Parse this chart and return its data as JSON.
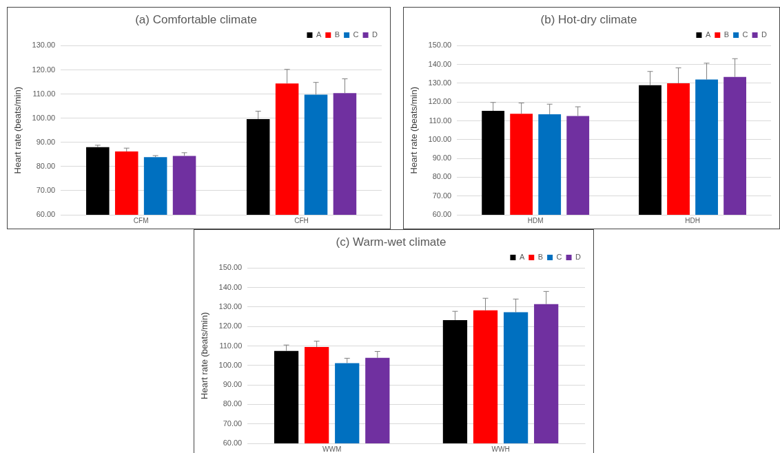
{
  "chart_data": [
    {
      "type": "bar",
      "title": "(a) Comfortable climate",
      "ylabel": "Heart rate (beats/min)",
      "categories": [
        "CFM",
        "CFH"
      ],
      "series": [
        {
          "name": "A",
          "color": "#000000",
          "values": [
            88.0,
            99.6
          ],
          "errors": [
            [
              88.0,
              88.8
            ],
            [
              99.6,
              102.9
            ]
          ]
        },
        {
          "name": "B",
          "color": "#ff0000",
          "values": [
            86.2,
            114.4
          ],
          "errors": [
            [
              86.2,
              87.6
            ],
            [
              114.4,
              120.2
            ]
          ]
        },
        {
          "name": "C",
          "color": "#0070c0",
          "values": [
            83.9,
            109.7
          ],
          "errors": [
            [
              83.9,
              84.5
            ],
            [
              109.7,
              114.8
            ]
          ]
        },
        {
          "name": "D",
          "color": "#7030a0",
          "values": [
            84.4,
            110.4
          ],
          "errors": [
            [
              84.4,
              85.7
            ],
            [
              110.4,
              116.3
            ]
          ]
        }
      ],
      "ylim": [
        60,
        130
      ],
      "yticks": [
        {
          "value": 60,
          "label": "60.00"
        },
        {
          "value": 70,
          "label": "70.00"
        },
        {
          "value": 80,
          "label": "80.00"
        },
        {
          "value": 90,
          "label": "90.00"
        },
        {
          "value": 100,
          "label": "100.00"
        },
        {
          "value": 110,
          "label": "110.00"
        },
        {
          "value": 120,
          "label": "120.00"
        },
        {
          "value": 130,
          "label": "130.00"
        }
      ],
      "grid": "y",
      "legend": "top right"
    },
    {
      "type": "bar",
      "title": "(b) Hot-dry climate",
      "ylabel": "Heart rate (beats/min)",
      "categories": [
        "HDM",
        "HDH"
      ],
      "series": [
        {
          "name": "A",
          "color": "#000000",
          "values": [
            115.3,
            129.0
          ],
          "errors": [
            [
              115.3,
              119.8
            ],
            [
              129.0,
              136.3
            ]
          ]
        },
        {
          "name": "B",
          "color": "#ff0000",
          "values": [
            113.8,
            130.0
          ],
          "errors": [
            [
              113.8,
              119.5
            ],
            [
              130.0,
              138.2
            ]
          ]
        },
        {
          "name": "C",
          "color": "#0070c0",
          "values": [
            113.5,
            132.0
          ],
          "errors": [
            [
              113.5,
              118.9
            ],
            [
              132.0,
              140.7
            ]
          ]
        },
        {
          "name": "D",
          "color": "#7030a0",
          "values": [
            112.6,
            133.4
          ],
          "errors": [
            [
              112.6,
              117.5
            ],
            [
              133.4,
              143.1
            ]
          ]
        }
      ],
      "ylim": [
        60,
        150
      ],
      "yticks": [
        {
          "value": 60,
          "label": "60.00"
        },
        {
          "value": 70,
          "label": "70.00"
        },
        {
          "value": 80,
          "label": "80.00"
        },
        {
          "value": 90,
          "label": "90.00"
        },
        {
          "value": 100,
          "label": "100.00"
        },
        {
          "value": 110,
          "label": "110.00"
        },
        {
          "value": 120,
          "label": "120.00"
        },
        {
          "value": 130,
          "label": "130.00"
        },
        {
          "value": 140,
          "label": "140.00"
        },
        {
          "value": 150,
          "label": "150.00"
        }
      ],
      "grid": "y",
      "legend": "top right"
    },
    {
      "type": "bar",
      "title": "(c) Warm-wet climate",
      "ylabel": "Heart rate (beats/min)",
      "categories": [
        "WWM",
        "WWH"
      ],
      "series": [
        {
          "name": "A",
          "color": "#000000",
          "values": [
            107.5,
            123.3
          ],
          "errors": [
            [
              107.5,
              110.5
            ],
            [
              123.3,
              127.8
            ]
          ]
        },
        {
          "name": "B",
          "color": "#ff0000",
          "values": [
            109.5,
            128.3
          ],
          "errors": [
            [
              109.5,
              112.5
            ],
            [
              128.3,
              134.5
            ]
          ]
        },
        {
          "name": "C",
          "color": "#0070c0",
          "values": [
            101.2,
            127.3
          ],
          "errors": [
            [
              101.2,
              103.7
            ],
            [
              127.3,
              134.1
            ]
          ]
        },
        {
          "name": "D",
          "color": "#7030a0",
          "values": [
            103.9,
            131.5
          ],
          "errors": [
            [
              103.9,
              107.2
            ],
            [
              131.5,
              138.0
            ]
          ]
        }
      ],
      "ylim": [
        60,
        150
      ],
      "yticks": [
        {
          "value": 60,
          "label": "60.00"
        },
        {
          "value": 70,
          "label": "70.00"
        },
        {
          "value": 80,
          "label": "80.00"
        },
        {
          "value": 90,
          "label": "90.00"
        },
        {
          "value": 100,
          "label": "100.00"
        },
        {
          "value": 110,
          "label": "110.00"
        },
        {
          "value": 120,
          "label": "120.00"
        },
        {
          "value": 130,
          "label": "130.00"
        },
        {
          "value": 140,
          "label": "140.00"
        },
        {
          "value": 150,
          "label": "150.00"
        }
      ],
      "grid": "y",
      "legend": "top right"
    }
  ]
}
